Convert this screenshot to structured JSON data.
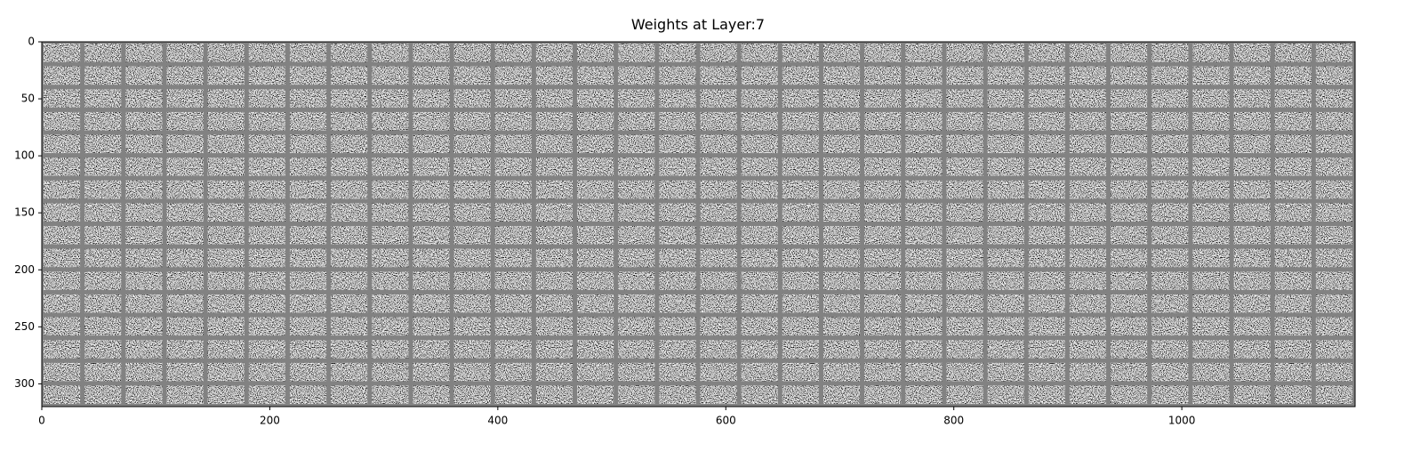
{
  "chart_data": {
    "type": "image",
    "title": "Weights at Layer:7",
    "xlim": [
      0,
      1152
    ],
    "xticks": [
      0,
      200,
      400,
      600,
      800,
      1000
    ],
    "ylim": [
      320,
      0
    ],
    "yticks": [
      0,
      50,
      100,
      150,
      200,
      250,
      300
    ]
  }
}
